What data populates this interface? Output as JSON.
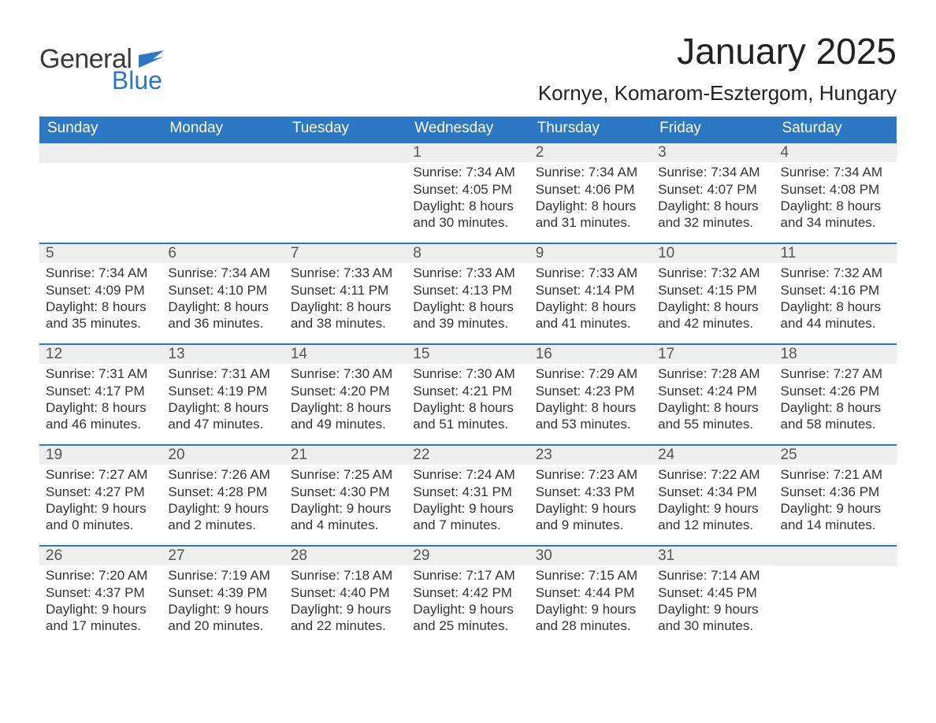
{
  "brand": {
    "word1": "General",
    "word2": "Blue"
  },
  "title": {
    "month_year": "January 2025",
    "location": "Kornye, Komarom-Esztergom, Hungary"
  },
  "colors": {
    "header_blue": "#2d78c3",
    "daynum_bg": "#eeeeee",
    "text": "#333333",
    "logo_dark": "#3a3a3a",
    "logo_blue": "#2d78c3",
    "background": "#ffffff"
  },
  "typography": {
    "title_fontsize_pt": 34,
    "location_fontsize_pt": 19,
    "header_fontsize_pt": 14,
    "body_fontsize_pt": 13,
    "font_family": "Segoe UI / Helvetica Neue"
  },
  "layout": {
    "columns": 7,
    "rows": 5,
    "week_start": "Sunday"
  },
  "calendar": {
    "headers": [
      "Sunday",
      "Monday",
      "Tuesday",
      "Wednesday",
      "Thursday",
      "Friday",
      "Saturday"
    ],
    "weeks": [
      [
        {
          "empty": true
        },
        {
          "empty": true
        },
        {
          "empty": true
        },
        {
          "day": "1",
          "sunrise": "Sunrise: 7:34 AM",
          "sunset": "Sunset: 4:05 PM",
          "daylight": "Daylight: 8 hours and 30 minutes."
        },
        {
          "day": "2",
          "sunrise": "Sunrise: 7:34 AM",
          "sunset": "Sunset: 4:06 PM",
          "daylight": "Daylight: 8 hours and 31 minutes."
        },
        {
          "day": "3",
          "sunrise": "Sunrise: 7:34 AM",
          "sunset": "Sunset: 4:07 PM",
          "daylight": "Daylight: 8 hours and 32 minutes."
        },
        {
          "day": "4",
          "sunrise": "Sunrise: 7:34 AM",
          "sunset": "Sunset: 4:08 PM",
          "daylight": "Daylight: 8 hours and 34 minutes."
        }
      ],
      [
        {
          "day": "5",
          "sunrise": "Sunrise: 7:34 AM",
          "sunset": "Sunset: 4:09 PM",
          "daylight": "Daylight: 8 hours and 35 minutes."
        },
        {
          "day": "6",
          "sunrise": "Sunrise: 7:34 AM",
          "sunset": "Sunset: 4:10 PM",
          "daylight": "Daylight: 8 hours and 36 minutes."
        },
        {
          "day": "7",
          "sunrise": "Sunrise: 7:33 AM",
          "sunset": "Sunset: 4:11 PM",
          "daylight": "Daylight: 8 hours and 38 minutes."
        },
        {
          "day": "8",
          "sunrise": "Sunrise: 7:33 AM",
          "sunset": "Sunset: 4:13 PM",
          "daylight": "Daylight: 8 hours and 39 minutes."
        },
        {
          "day": "9",
          "sunrise": "Sunrise: 7:33 AM",
          "sunset": "Sunset: 4:14 PM",
          "daylight": "Daylight: 8 hours and 41 minutes."
        },
        {
          "day": "10",
          "sunrise": "Sunrise: 7:32 AM",
          "sunset": "Sunset: 4:15 PM",
          "daylight": "Daylight: 8 hours and 42 minutes."
        },
        {
          "day": "11",
          "sunrise": "Sunrise: 7:32 AM",
          "sunset": "Sunset: 4:16 PM",
          "daylight": "Daylight: 8 hours and 44 minutes."
        }
      ],
      [
        {
          "day": "12",
          "sunrise": "Sunrise: 7:31 AM",
          "sunset": "Sunset: 4:17 PM",
          "daylight": "Daylight: 8 hours and 46 minutes."
        },
        {
          "day": "13",
          "sunrise": "Sunrise: 7:31 AM",
          "sunset": "Sunset: 4:19 PM",
          "daylight": "Daylight: 8 hours and 47 minutes."
        },
        {
          "day": "14",
          "sunrise": "Sunrise: 7:30 AM",
          "sunset": "Sunset: 4:20 PM",
          "daylight": "Daylight: 8 hours and 49 minutes."
        },
        {
          "day": "15",
          "sunrise": "Sunrise: 7:30 AM",
          "sunset": "Sunset: 4:21 PM",
          "daylight": "Daylight: 8 hours and 51 minutes."
        },
        {
          "day": "16",
          "sunrise": "Sunrise: 7:29 AM",
          "sunset": "Sunset: 4:23 PM",
          "daylight": "Daylight: 8 hours and 53 minutes."
        },
        {
          "day": "17",
          "sunrise": "Sunrise: 7:28 AM",
          "sunset": "Sunset: 4:24 PM",
          "daylight": "Daylight: 8 hours and 55 minutes."
        },
        {
          "day": "18",
          "sunrise": "Sunrise: 7:27 AM",
          "sunset": "Sunset: 4:26 PM",
          "daylight": "Daylight: 8 hours and 58 minutes."
        }
      ],
      [
        {
          "day": "19",
          "sunrise": "Sunrise: 7:27 AM",
          "sunset": "Sunset: 4:27 PM",
          "daylight": "Daylight: 9 hours and 0 minutes."
        },
        {
          "day": "20",
          "sunrise": "Sunrise: 7:26 AM",
          "sunset": "Sunset: 4:28 PM",
          "daylight": "Daylight: 9 hours and 2 minutes."
        },
        {
          "day": "21",
          "sunrise": "Sunrise: 7:25 AM",
          "sunset": "Sunset: 4:30 PM",
          "daylight": "Daylight: 9 hours and 4 minutes."
        },
        {
          "day": "22",
          "sunrise": "Sunrise: 7:24 AM",
          "sunset": "Sunset: 4:31 PM",
          "daylight": "Daylight: 9 hours and 7 minutes."
        },
        {
          "day": "23",
          "sunrise": "Sunrise: 7:23 AM",
          "sunset": "Sunset: 4:33 PM",
          "daylight": "Daylight: 9 hours and 9 minutes."
        },
        {
          "day": "24",
          "sunrise": "Sunrise: 7:22 AM",
          "sunset": "Sunset: 4:34 PM",
          "daylight": "Daylight: 9 hours and 12 minutes."
        },
        {
          "day": "25",
          "sunrise": "Sunrise: 7:21 AM",
          "sunset": "Sunset: 4:36 PM",
          "daylight": "Daylight: 9 hours and 14 minutes."
        }
      ],
      [
        {
          "day": "26",
          "sunrise": "Sunrise: 7:20 AM",
          "sunset": "Sunset: 4:37 PM",
          "daylight": "Daylight: 9 hours and 17 minutes."
        },
        {
          "day": "27",
          "sunrise": "Sunrise: 7:19 AM",
          "sunset": "Sunset: 4:39 PM",
          "daylight": "Daylight: 9 hours and 20 minutes."
        },
        {
          "day": "28",
          "sunrise": "Sunrise: 7:18 AM",
          "sunset": "Sunset: 4:40 PM",
          "daylight": "Daylight: 9 hours and 22 minutes."
        },
        {
          "day": "29",
          "sunrise": "Sunrise: 7:17 AM",
          "sunset": "Sunset: 4:42 PM",
          "daylight": "Daylight: 9 hours and 25 minutes."
        },
        {
          "day": "30",
          "sunrise": "Sunrise: 7:15 AM",
          "sunset": "Sunset: 4:44 PM",
          "daylight": "Daylight: 9 hours and 28 minutes."
        },
        {
          "day": "31",
          "sunrise": "Sunrise: 7:14 AM",
          "sunset": "Sunset: 4:45 PM",
          "daylight": "Daylight: 9 hours and 30 minutes."
        },
        {
          "empty": true
        }
      ]
    ]
  }
}
